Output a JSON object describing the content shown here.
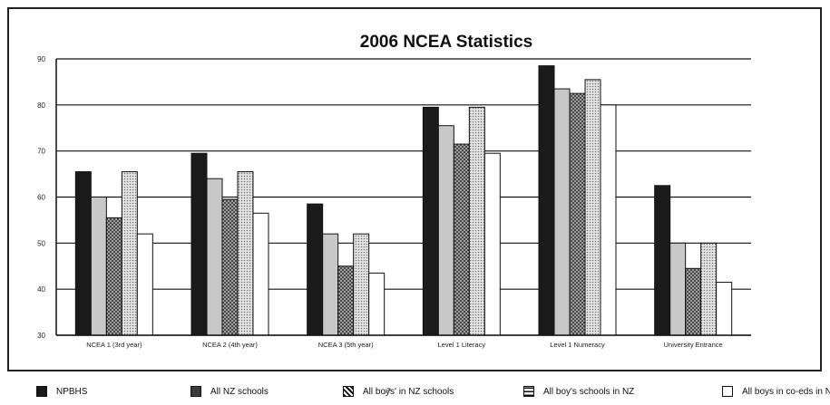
{
  "chart_data": {
    "type": "bar",
    "title": "2006 NCEA Statistics",
    "xlabel": "",
    "ylabel": "",
    "ylim": [
      30,
      90
    ],
    "yticks": [
      30,
      40,
      50,
      60,
      70,
      80,
      90
    ],
    "grid": true,
    "legend_placement": "bottom",
    "categories": [
      "NCEA 1 (3rd year)",
      "NCEA 2 (4th year)",
      "NCEA 3 (5th year)",
      "Level 1 Literacy",
      "Level 1 Numeracy",
      "University Entrance"
    ],
    "series": [
      {
        "name": "NPBHS",
        "values": [
          65.5,
          69.5,
          58.5,
          79.5,
          88.5,
          62.5
        ]
      },
      {
        "name": "All NZ schools",
        "values": [
          60,
          64,
          52,
          75.5,
          83.5,
          50
        ]
      },
      {
        "name": "All boys' in NZ schools",
        "values": [
          55.5,
          59.5,
          45,
          71.5,
          82.5,
          44.5
        ]
      },
      {
        "name": "All boy's schools in NZ",
        "values": [
          65.5,
          65.5,
          52,
          79.5,
          85.5,
          50
        ]
      },
      {
        "name": "All boys in co-eds in NZ",
        "values": [
          52,
          56.5,
          43.5,
          69.5,
          80,
          41.5
        ]
      }
    ],
    "series_colors": [
      "#1b1b1b",
      "#c8c8c8",
      "#8e8e8e",
      "#d2d2d2",
      "#ffffff"
    ],
    "series_patterns": [
      "solid",
      "solid",
      "crosshatch",
      "dots",
      "none"
    ]
  },
  "legend": {
    "items": [
      {
        "label": "NPBHS",
        "swatch": "solid"
      },
      {
        "label": "All NZ schools",
        "swatch": "gray"
      },
      {
        "label": "All boys' in NZ schools",
        "swatch": "hatch"
      },
      {
        "label": "All boy's schools in NZ",
        "swatch": "stripe"
      },
      {
        "label": "All boys in co-eds in NZ",
        "swatch": "white"
      }
    ]
  }
}
